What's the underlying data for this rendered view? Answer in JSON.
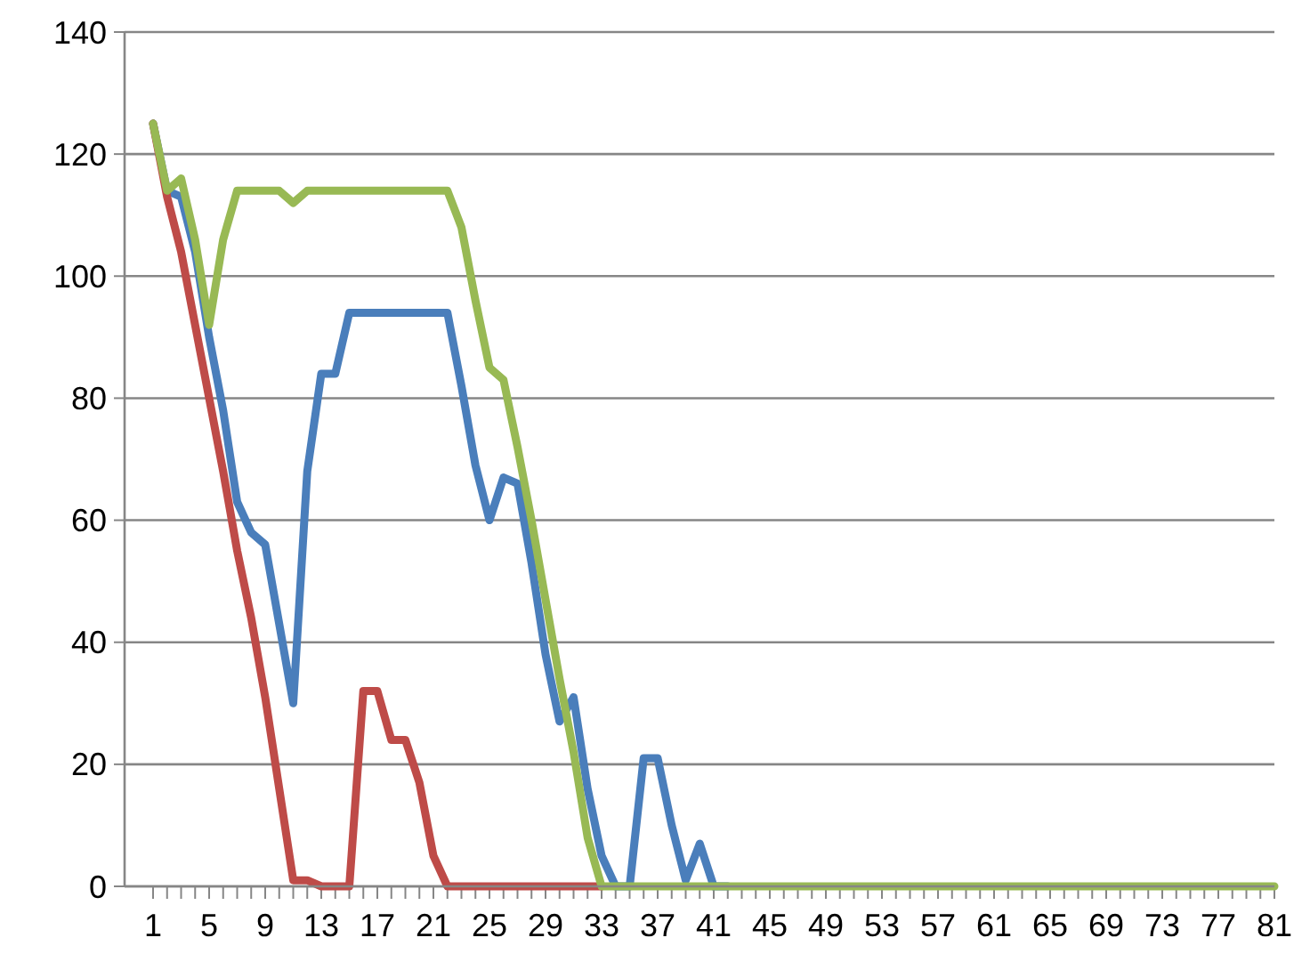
{
  "chart_data": {
    "type": "line",
    "categories": [
      "1",
      null,
      null,
      null,
      "5",
      null,
      null,
      null,
      "9",
      null,
      null,
      null,
      "13",
      null,
      null,
      null,
      "17",
      null,
      null,
      null,
      "21",
      null,
      null,
      null,
      "25",
      null,
      null,
      null,
      "29",
      null,
      null,
      null,
      "33",
      null,
      null,
      null,
      "37",
      null,
      null,
      null,
      "41",
      null,
      null,
      null,
      "45",
      null,
      null,
      null,
      "49",
      null,
      null,
      null,
      "53",
      null,
      null,
      null,
      "57",
      null,
      null,
      null,
      "61",
      null,
      null,
      null,
      "65",
      null,
      null,
      null,
      "69",
      null,
      null,
      null,
      "73",
      null,
      null,
      null,
      "77",
      null,
      null,
      null,
      "81"
    ],
    "ylim": [
      0,
      140
    ],
    "yticks": [
      0,
      20,
      40,
      60,
      80,
      100,
      120,
      140
    ],
    "grid": "y",
    "marker": "none",
    "line_style": "solid",
    "series": [
      {
        "color": "#4a7ebb",
        "values": [
          125,
          114,
          113,
          104,
          90,
          78,
          63,
          58,
          56,
          43,
          30,
          68,
          84,
          84,
          94,
          94,
          94,
          94,
          94,
          94,
          94,
          94,
          82,
          69,
          60,
          67,
          66,
          53,
          38,
          27,
          31,
          16,
          5,
          0,
          0,
          21,
          21,
          10,
          1,
          7,
          0,
          0,
          null,
          null,
          null,
          null,
          null,
          null,
          null,
          null,
          null,
          null,
          null,
          null,
          null,
          null,
          null,
          null,
          null,
          null,
          null,
          null,
          null,
          null,
          null,
          null,
          null,
          null,
          null,
          null,
          null,
          null,
          null,
          null,
          null,
          null,
          null,
          null,
          null,
          null,
          null
        ]
      },
      {
        "color": "#be4b48",
        "values": [
          125,
          113,
          104,
          92,
          80,
          68,
          55,
          44,
          31,
          16,
          1,
          1,
          0,
          0,
          0,
          32,
          32,
          24,
          24,
          17,
          5,
          0,
          0,
          0,
          0,
          0,
          0,
          0,
          0,
          0,
          0,
          0,
          0,
          null,
          null,
          null,
          null,
          null,
          null,
          null,
          null,
          null,
          null,
          null,
          null,
          null,
          null,
          null,
          null,
          null,
          null,
          null,
          null,
          null,
          null,
          null,
          null,
          null,
          null,
          null,
          null,
          null,
          null,
          null,
          null,
          null,
          null,
          null,
          null,
          null,
          null,
          null,
          null,
          null,
          null,
          null,
          null,
          null,
          null,
          null,
          null
        ]
      },
      {
        "color": "#98b954",
        "values": [
          125,
          114,
          116,
          106,
          92,
          106,
          114,
          114,
          114,
          114,
          112,
          114,
          114,
          114,
          114,
          114,
          114,
          114,
          114,
          114,
          114,
          114,
          108,
          96,
          85,
          83,
          72,
          60,
          47,
          34,
          22,
          8,
          0,
          0,
          0,
          0,
          0,
          0,
          0,
          0,
          0,
          0,
          0,
          0,
          0,
          0,
          0,
          0,
          0,
          0,
          0,
          0,
          0,
          0,
          0,
          0,
          0,
          0,
          0,
          0,
          0,
          0,
          0,
          0,
          0,
          0,
          0,
          0,
          0,
          0,
          0,
          0,
          0,
          0,
          0,
          0,
          0,
          0,
          0,
          0,
          0
        ]
      }
    ]
  }
}
